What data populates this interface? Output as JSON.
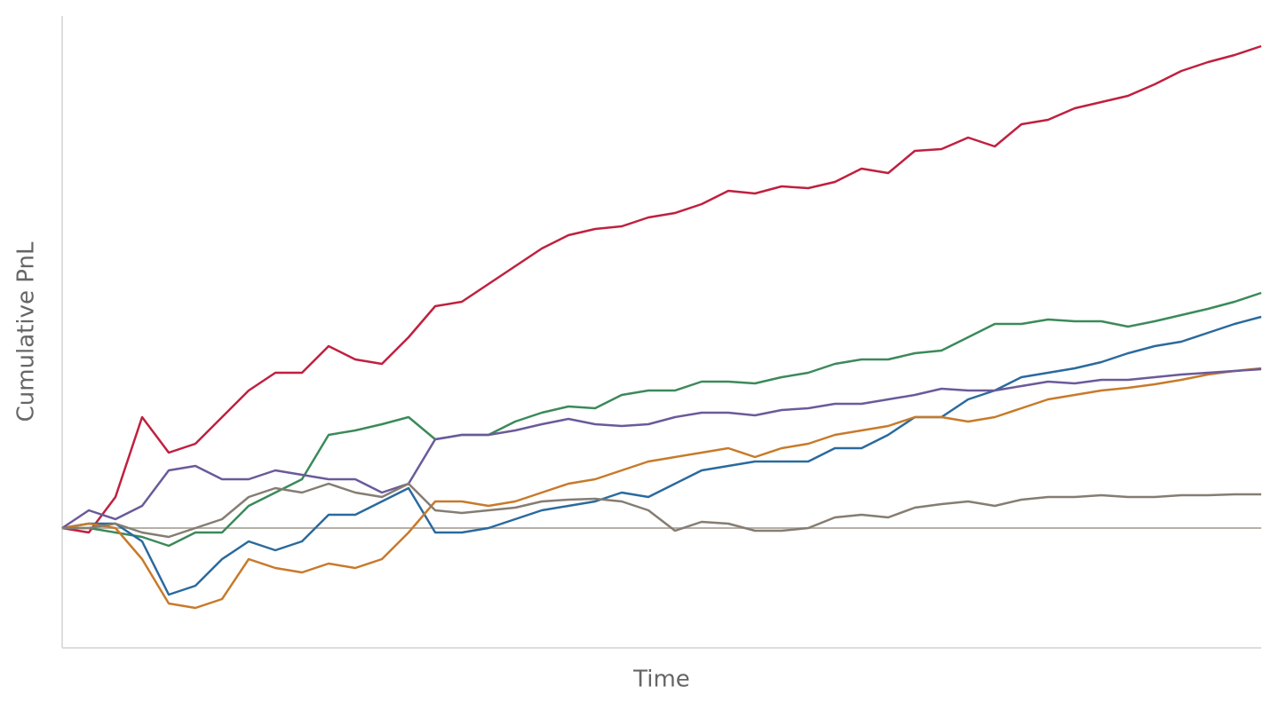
{
  "chart_data": {
    "type": "line",
    "xlabel": "Time",
    "ylabel": "Cumulative PnL",
    "x": [
      0,
      1,
      2,
      3,
      4,
      5,
      6,
      7,
      8,
      9,
      10,
      11,
      12,
      13,
      14,
      15,
      16,
      17,
      18,
      19,
      20,
      21,
      22,
      23,
      24,
      25,
      26,
      27,
      28,
      29,
      30,
      31,
      32,
      33,
      34,
      35,
      36,
      37,
      38,
      39,
      40,
      41,
      42,
      43,
      44,
      45
    ],
    "xlim": [
      0,
      45
    ],
    "ylim": [
      -13.5,
      57.7
    ],
    "hline": 0,
    "hline_color": "#b5b1a8",
    "axis_color": "#dddddd",
    "series": [
      {
        "color": "#c0203f",
        "values": [
          0,
          -0.5,
          3.5,
          12.5,
          8.5,
          9.5,
          12.5,
          15.5,
          17.5,
          17.5,
          20.5,
          19,
          18.5,
          21.5,
          25,
          25.5,
          27.5,
          29.5,
          31.5,
          33,
          33.7,
          34,
          35,
          35.5,
          36.5,
          38,
          37.7,
          38.5,
          38.3,
          39,
          40.5,
          40,
          42.5,
          42.7,
          44,
          43,
          45.5,
          46,
          47.3,
          48,
          48.7,
          50,
          51.5,
          52.5,
          53.3,
          54.3
        ]
      },
      {
        "color": "#3b8a5a",
        "values": [
          0,
          0,
          -0.5,
          -1,
          -2,
          -0.5,
          -0.5,
          2.5,
          4,
          5.5,
          10.5,
          11,
          11.7,
          12.5,
          10,
          10.5,
          10.5,
          12,
          13,
          13.7,
          13.5,
          15,
          15.5,
          15.5,
          16.5,
          16.5,
          16.3,
          17,
          17.5,
          18.5,
          19,
          19,
          19.7,
          20,
          21.5,
          23,
          23,
          23.5,
          23.3,
          23.3,
          22.7,
          23.3,
          24,
          24.7,
          25.5,
          26.5
        ]
      },
      {
        "color": "#2a6a9e",
        "values": [
          0,
          0.5,
          0.5,
          -1.5,
          -7.5,
          -6.5,
          -3.5,
          -1.5,
          -2.5,
          -1.5,
          1.5,
          1.5,
          3,
          4.5,
          -0.5,
          -0.5,
          0,
          1,
          2,
          2.5,
          3,
          4,
          3.5,
          5,
          6.5,
          7,
          7.5,
          7.5,
          7.5,
          9,
          9,
          10.5,
          12.5,
          12.5,
          14.5,
          15.5,
          17,
          17.5,
          18,
          18.7,
          19.7,
          20.5,
          21,
          22,
          23,
          23.8
        ]
      },
      {
        "color": "#c87a2a",
        "values": [
          0,
          0.5,
          0,
          -3.5,
          -8.5,
          -9,
          -8,
          -3.5,
          -4.5,
          -5,
          -4,
          -4.5,
          -3.5,
          -0.5,
          3,
          3,
          2.5,
          3,
          4,
          5,
          5.5,
          6.5,
          7.5,
          8,
          8.5,
          9,
          8,
          9,
          9.5,
          10.5,
          11,
          11.5,
          12.5,
          12.5,
          12,
          12.5,
          13.5,
          14.5,
          15,
          15.5,
          15.8,
          16.2,
          16.7,
          17.3,
          17.7,
          18
        ]
      },
      {
        "color": "#6a5a9a",
        "values": [
          0,
          2,
          1,
          2.5,
          6.5,
          7,
          5.5,
          5.5,
          6.5,
          6,
          5.5,
          5.5,
          4,
          5,
          10,
          10.5,
          10.5,
          11,
          11.7,
          12.3,
          11.7,
          11.5,
          11.7,
          12.5,
          13,
          13,
          12.7,
          13.3,
          13.5,
          14,
          14,
          14.5,
          15,
          15.7,
          15.5,
          15.5,
          16,
          16.5,
          16.3,
          16.7,
          16.7,
          17,
          17.3,
          17.5,
          17.7,
          17.9
        ]
      },
      {
        "color": "#857d72",
        "values": [
          0,
          0,
          0.5,
          -0.5,
          -1,
          0,
          1,
          3.5,
          4.5,
          4,
          5,
          4,
          3.5,
          5,
          2,
          1.7,
          2,
          2.3,
          3,
          3.2,
          3.3,
          3,
          2,
          -0.3,
          0.7,
          0.5,
          -0.3,
          -0.3,
          0,
          1.2,
          1.5,
          1.2,
          2.3,
          2.7,
          3,
          2.5,
          3.2,
          3.5,
          3.5,
          3.7,
          3.5,
          3.5,
          3.7,
          3.7,
          3.8,
          3.8
        ]
      }
    ]
  }
}
